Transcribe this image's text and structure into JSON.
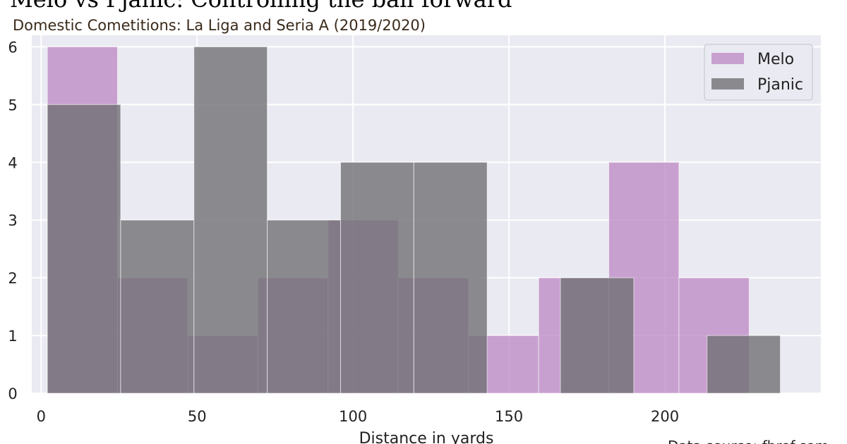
{
  "chart_data": {
    "type": "bar",
    "title": "Melo vs Pjanic: Controlling the ball forward",
    "subtitle": "Domestic Cometitions: La Liga and Seria A (2019/2020)",
    "xlabel": "Distance in yards",
    "ylabel": "",
    "xlim": [
      -3,
      250
    ],
    "ylim": [
      0,
      6.2
    ],
    "xticks": [
      0,
      50,
      100,
      150,
      200
    ],
    "yticks": [
      0,
      1,
      2,
      3,
      4,
      5,
      6
    ],
    "grid": true,
    "legend_position": "top-right",
    "source": "Data source: fbref.com",
    "series": [
      {
        "name": "Melo",
        "color": "#bf8dc6",
        "bins": [
          {
            "x0": 2,
            "x1": 24.5,
            "count": 6
          },
          {
            "x0": 24.5,
            "x1": 47,
            "count": 2
          },
          {
            "x0": 47,
            "x1": 69.5,
            "count": 1
          },
          {
            "x0": 69.5,
            "x1": 92,
            "count": 2
          },
          {
            "x0": 92,
            "x1": 114.5,
            "count": 3
          },
          {
            "x0": 114.5,
            "x1": 137,
            "count": 2
          },
          {
            "x0": 137,
            "x1": 159.5,
            "count": 1
          },
          {
            "x0": 159.5,
            "x1": 182,
            "count": 2
          },
          {
            "x0": 182,
            "x1": 204.5,
            "count": 4
          },
          {
            "x0": 204.5,
            "x1": 227,
            "count": 2
          }
        ]
      },
      {
        "name": "Pjanic",
        "color": "#707074",
        "bins": [
          {
            "x0": 2,
            "x1": 25.5,
            "count": 5
          },
          {
            "x0": 25.5,
            "x1": 49,
            "count": 3
          },
          {
            "x0": 49,
            "x1": 72.5,
            "count": 6
          },
          {
            "x0": 72.5,
            "x1": 96,
            "count": 3
          },
          {
            "x0": 96,
            "x1": 119.5,
            "count": 4
          },
          {
            "x0": 119.5,
            "x1": 143,
            "count": 4
          },
          {
            "x0": 143,
            "x1": 166.5,
            "count": 0
          },
          {
            "x0": 166.5,
            "x1": 190,
            "count": 2
          },
          {
            "x0": 190,
            "x1": 213.5,
            "count": 0
          },
          {
            "x0": 213.5,
            "x1": 237,
            "count": 1
          }
        ]
      }
    ]
  }
}
